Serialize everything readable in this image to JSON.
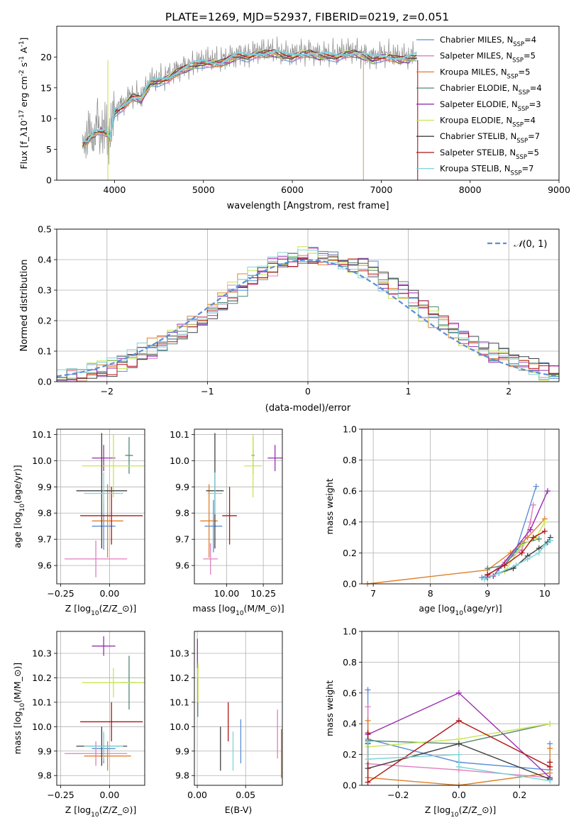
{
  "figure": {
    "title": "PLATE=1269, MJD=52937, FIBERID=0219, z=0.051"
  },
  "series_models": [
    {
      "name": "Chabrier MILES, N$_{SSP}$=4",
      "label_html": "Chabrier MILES, N<sub>SSP</sub>=4",
      "color": "#5b8fd9"
    },
    {
      "name": "Salpeter MILES, N$_{SSP}$=5",
      "label_html": "Salpeter MILES, N<sub>SSP</sub>=5",
      "color": "#e07fbf"
    },
    {
      "name": "Kroupa MILES, N$_{SSP}$=5",
      "label_html": "Kroupa MILES, N<sub>SSP</sub>=5",
      "color": "#e0802a"
    },
    {
      "name": "Chabrier ELODIE, N$_{SSP}$=4",
      "label_html": "Chabrier ELODIE, N<sub>SSP</sub>=4",
      "color": "#4f8a6f"
    },
    {
      "name": "Salpeter ELODIE, N$_{SSP}$=3",
      "label_html": "Salpeter ELODIE, N<sub>SSP</sub>=3",
      "color": "#9a2fb0"
    },
    {
      "name": "Kroupa ELODIE, N$_{SSP}$=4",
      "label_html": "Kroupa ELODIE, N<sub>SSP</sub>=4",
      "color": "#c8e650"
    },
    {
      "name": "Chabrier STELIB, N$_{SSP}$=7",
      "label_html": "Chabrier STELIB, N<sub>SSP</sub>=7",
      "color": "#404040"
    },
    {
      "name": "Salpeter STELIB, N$_{SSP}$=5",
      "label_html": "Salpeter STELIB, N<sub>SSP</sub>=5",
      "color": "#b01515"
    },
    {
      "name": "Kroupa STELIB, N$_{SSP}$=7",
      "label_html": "Kroupa STELIB, N<sub>SSP</sub>=7",
      "color": "#7dd3d8"
    }
  ],
  "chart_data": [
    {
      "id": "spectrum",
      "type": "line",
      "xlabel": "wavelength [Angstrom, rest frame]",
      "ylabel": "Flux [f$_\\lambda$10$^{-17}$ erg cm$^{-2}$ s$^{-1}$ A$^{-1}$]",
      "xlim": [
        3350,
        9000
      ],
      "ylim": [
        0,
        25
      ],
      "xticks": [
        4000,
        5000,
        6000,
        7000,
        8000,
        9000
      ],
      "yticks": [
        0,
        5,
        10,
        15,
        20
      ],
      "grid": false,
      "legend": "right",
      "data_x": [
        3640,
        3700,
        3780,
        3850,
        3900,
        3950,
        4000,
        4100,
        4200,
        4300,
        4400,
        4500,
        4600,
        4700,
        4800,
        4900,
        5000,
        5100,
        5200,
        5300,
        5400,
        5500,
        5600,
        5700,
        5800,
        5900,
        6000,
        6100,
        6200,
        6300,
        6400,
        6500,
        6600,
        6700,
        6800,
        6900,
        7000,
        7100,
        7200,
        7300,
        7400
      ],
      "data_y": [
        6.0,
        7.5,
        9.0,
        8.5,
        8.0,
        7.5,
        11.5,
        12.5,
        14.0,
        13.5,
        16.0,
        16.5,
        17.0,
        18.0,
        18.5,
        19.0,
        19.5,
        19.5,
        19.5,
        20.0,
        20.5,
        20.5,
        21.0,
        21.0,
        21.0,
        20.5,
        20.5,
        21.0,
        21.0,
        20.5,
        20.5,
        20.5,
        21.0,
        21.0,
        20.5,
        20.0,
        20.5,
        20.5,
        20.0,
        20.0,
        20.5
      ],
      "model_x": [
        3640,
        3700,
        3780,
        3850,
        3900,
        3950,
        4000,
        4100,
        4200,
        4300,
        4400,
        4500,
        4600,
        4700,
        4800,
        4900,
        5000,
        5100,
        5200,
        5300,
        5400,
        5500,
        5600,
        5700,
        5800,
        5900,
        6000,
        6100,
        6200,
        6300,
        6400,
        6500,
        6600,
        6700,
        6800,
        6900,
        7000,
        7100,
        7200,
        7300,
        7400
      ],
      "model_y": [
        5.5,
        6.5,
        7.5,
        8.0,
        7.5,
        7.0,
        11.0,
        12.0,
        13.5,
        13.0,
        15.5,
        16.0,
        16.5,
        17.5,
        18.0,
        18.5,
        19.0,
        19.0,
        19.0,
        19.5,
        20.0,
        20.0,
        20.5,
        20.5,
        20.5,
        20.0,
        20.0,
        20.5,
        20.5,
        20.0,
        20.0,
        20.0,
        20.5,
        20.5,
        20.0,
        19.5,
        20.0,
        20.0,
        19.5,
        19.5,
        20.0
      ]
    },
    {
      "id": "residuals",
      "type": "line",
      "xlabel": "(data-model)/error",
      "ylabel": "Normed distribution",
      "xlim": [
        -2.5,
        2.5
      ],
      "ylim": [
        0,
        0.5
      ],
      "xticks": [
        -2,
        -1,
        0,
        1,
        2
      ],
      "yticks": [
        0.0,
        0.1,
        0.2,
        0.3,
        0.4,
        0.5
      ],
      "grid": true,
      "legend": "top-right",
      "gauss_label": "$\\mathcal{N}(0,1)$",
      "gauss_color": "#5b8fd9",
      "bin_start": -2.5,
      "bin_width": 0.1
    },
    {
      "id": "age-vs-Z",
      "type": "scatter",
      "xlabel": "Z [log$_{10}$(Z/Z$_\\odot$)]",
      "ylabel": "age  [log$_{10}$(age/yr)]",
      "xlim": [
        -0.27,
        0.18
      ],
      "ylim": [
        9.53,
        10.12
      ],
      "xticks": [
        -0.25,
        0.0
      ],
      "yticks": [
        9.6,
        9.7,
        9.8,
        9.9,
        10.0,
        10.1
      ],
      "grid": true,
      "points": [
        {
          "x": -0.03,
          "y": 9.75,
          "xerr": 0.06,
          "yerr": 0.09
        },
        {
          "x": -0.07,
          "y": 9.625,
          "xerr": 0.16,
          "yerr": 0.07
        },
        {
          "x": -0.01,
          "y": 9.77,
          "xerr": 0.08,
          "yerr": 0.14
        },
        {
          "x": 0.1,
          "y": 10.02,
          "xerr": 0.02,
          "yerr": 0.07
        },
        {
          "x": -0.03,
          "y": 10.01,
          "xerr": 0.06,
          "yerr": 0.05
        },
        {
          "x": 0.02,
          "y": 9.98,
          "xerr": 0.16,
          "yerr": 0.12
        },
        {
          "x": -0.04,
          "y": 9.885,
          "xerr": 0.13,
          "yerr": 0.22
        },
        {
          "x": 0.01,
          "y": 9.79,
          "xerr": 0.16,
          "yerr": 0.11
        },
        {
          "x": -0.03,
          "y": 9.875,
          "xerr": 0.1,
          "yerr": 0.08
        }
      ]
    },
    {
      "id": "age-vs-mass",
      "type": "scatter",
      "xlabel": "mass [log$_{10}$(M/M$_\\odot$)]",
      "ylabel": "",
      "xlim": [
        9.78,
        10.38
      ],
      "ylim": [
        9.53,
        10.12
      ],
      "xticks": [
        10.0,
        10.25
      ],
      "yticks": [
        9.6,
        9.7,
        9.8,
        9.9,
        10.0,
        10.1
      ],
      "grid": true,
      "points": [
        {
          "x": 9.91,
          "y": 9.75,
          "xerr": 0.06,
          "yerr": 0.1
        },
        {
          "x": 9.89,
          "y": 9.625,
          "xerr": 0.05,
          "yerr": 0.06
        },
        {
          "x": 9.88,
          "y": 9.77,
          "xerr": 0.06,
          "yerr": 0.14
        },
        {
          "x": 10.18,
          "y": 10.02,
          "xerr": 0.01,
          "yerr": 0.07
        },
        {
          "x": 10.33,
          "y": 10.01,
          "xerr": 0.05,
          "yerr": 0.05
        },
        {
          "x": 10.18,
          "y": 9.98,
          "xerr": 0.06,
          "yerr": 0.12
        },
        {
          "x": 9.92,
          "y": 9.885,
          "xerr": 0.06,
          "yerr": 0.22
        },
        {
          "x": 10.02,
          "y": 9.79,
          "xerr": 0.05,
          "yerr": 0.11
        },
        {
          "x": 9.92,
          "y": 9.875,
          "xerr": 0.05,
          "yerr": 0.08
        }
      ]
    },
    {
      "id": "weight-vs-age",
      "type": "line",
      "xlabel": "age  [log$_{10}$(age/yr)]",
      "ylabel": "mass weight",
      "xlim": [
        6.8,
        10.25
      ],
      "ylim": [
        0,
        1
      ],
      "xticks": [
        7,
        8,
        9,
        10
      ],
      "yticks": [
        0.0,
        0.2,
        0.4,
        0.6,
        0.8,
        1.0
      ],
      "grid": true,
      "series": [
        {
          "x": [
            8.9,
            9.2,
            9.5,
            9.85
          ],
          "y": [
            0.04,
            0.1,
            0.22,
            0.63
          ]
        },
        {
          "x": [
            9.0,
            9.3,
            9.6,
            9.75,
            9.8
          ],
          "y": [
            0.05,
            0.14,
            0.22,
            0.4,
            0.51
          ]
        },
        {
          "x": [
            6.9,
            9.0,
            9.4,
            9.7,
            10.0
          ],
          "y": [
            0.0,
            0.09,
            0.2,
            0.3,
            0.42
          ]
        },
        {
          "x": [
            9.0,
            9.3,
            9.6,
            9.9
          ],
          "y": [
            0.1,
            0.12,
            0.26,
            0.29
          ]
        },
        {
          "x": [
            9.1,
            9.75,
            10.05
          ],
          "y": [
            0.05,
            0.35,
            0.6
          ]
        },
        {
          "x": [
            9.3,
            9.6,
            9.85,
            10.0
          ],
          "y": [
            0.08,
            0.25,
            0.3,
            0.4
          ]
        },
        {
          "x": [
            9.0,
            9.2,
            9.45,
            9.7,
            9.9,
            10.05,
            10.1
          ],
          "y": [
            0.04,
            0.07,
            0.1,
            0.18,
            0.23,
            0.27,
            0.3
          ]
        },
        {
          "x": [
            9.0,
            9.3,
            9.6,
            9.8,
            10.0
          ],
          "y": [
            0.06,
            0.12,
            0.2,
            0.3,
            0.34
          ]
        },
        {
          "x": [
            8.95,
            9.2,
            9.5,
            9.7,
            9.9,
            10.0,
            10.1
          ],
          "y": [
            0.03,
            0.07,
            0.12,
            0.16,
            0.2,
            0.25,
            0.28
          ]
        }
      ]
    },
    {
      "id": "mass-vs-Z",
      "type": "scatter",
      "xlabel": "Z [log$_{10}$(Z/Z$_\\odot$)]",
      "ylabel": "mass [log$_{10}$(M/M$_\\odot$)]",
      "xlim": [
        -0.27,
        0.18
      ],
      "ylim": [
        9.76,
        10.39
      ],
      "xticks": [
        -0.25,
        0.0
      ],
      "yticks": [
        9.8,
        9.9,
        10.0,
        10.1,
        10.2,
        10.3
      ],
      "grid": true,
      "points": [
        {
          "x": -0.03,
          "y": 9.91,
          "xerr": 0.06,
          "yerr": 0.06
        },
        {
          "x": -0.07,
          "y": 9.89,
          "xerr": 0.16,
          "yerr": 0.05
        },
        {
          "x": -0.01,
          "y": 9.88,
          "xerr": 0.12,
          "yerr": 0.06
        },
        {
          "x": 0.1,
          "y": 10.18,
          "xerr": 0.04,
          "yerr": 0.11
        },
        {
          "x": -0.03,
          "y": 10.33,
          "xerr": 0.06,
          "yerr": 0.04
        },
        {
          "x": 0.02,
          "y": 10.18,
          "xerr": 0.16,
          "yerr": 0.06
        },
        {
          "x": -0.04,
          "y": 9.92,
          "xerr": 0.13,
          "yerr": 0.08
        },
        {
          "x": 0.01,
          "y": 10.02,
          "xerr": 0.16,
          "yerr": 0.08
        },
        {
          "x": -0.03,
          "y": 9.92,
          "xerr": 0.1,
          "yerr": 0.06
        }
      ]
    },
    {
      "id": "mass-vs-EBV",
      "type": "scatter",
      "xlabel": "E(B-V)",
      "ylabel": "",
      "xlim": [
        -0.003,
        0.088
      ],
      "ylim": [
        9.76,
        10.39
      ],
      "xticks": [
        0.0,
        0.05
      ],
      "yticks": [
        9.8,
        9.9,
        10.0,
        10.1,
        10.2,
        10.3
      ],
      "grid": true,
      "points": [
        {
          "x": 0.045,
          "y": 9.94,
          "xerr": 0,
          "yerr": 0.09
        },
        {
          "x": 0.083,
          "y": 9.97,
          "xerr": 0,
          "yerr": 0.1
        },
        {
          "x": 0.087,
          "y": 9.89,
          "xerr": 0,
          "yerr": 0.1
        },
        {
          "x": 0.0005,
          "y": 10.12,
          "xerr": 0,
          "yerr": 0.08
        },
        {
          "x": 0.0002,
          "y": 10.3,
          "xerr": 0,
          "yerr": 0.06
        },
        {
          "x": 0.0008,
          "y": 10.18,
          "xerr": 0,
          "yerr": 0.08
        },
        {
          "x": 0.024,
          "y": 9.91,
          "xerr": 0,
          "yerr": 0.09
        },
        {
          "x": 0.032,
          "y": 10.02,
          "xerr": 0,
          "yerr": 0.08
        },
        {
          "x": 0.037,
          "y": 9.9,
          "xerr": 0,
          "yerr": 0.08
        }
      ]
    },
    {
      "id": "weight-vs-Z",
      "type": "line",
      "xlabel": "Z [log$_{10}$(Z/Z$_\\odot$)]",
      "ylabel": "mass weight",
      "xlim": [
        -0.32,
        0.33
      ],
      "ylim": [
        0,
        1
      ],
      "xticks": [
        -0.2,
        0.0,
        0.2
      ],
      "yticks": [
        0.0,
        0.2,
        0.4,
        0.6,
        0.8,
        1.0
      ],
      "grid": true,
      "series": [
        {
          "x": [
            -0.3,
            -0.3,
            0.0,
            0.3,
            0.3
          ],
          "y": [
            0.62,
            0.3,
            0.15,
            0.1,
            0.27
          ]
        },
        {
          "x": [
            -0.3,
            -0.3,
            0.0,
            0.3
          ],
          "y": [
            0.51,
            0.14,
            0.1,
            0.05
          ]
        },
        {
          "x": [
            -0.3,
            -0.3,
            0.0,
            0.3,
            0.3
          ],
          "y": [
            0.42,
            0.05,
            0.0,
            0.08,
            0.24
          ]
        },
        {
          "x": [
            -0.3,
            0.0,
            0.3
          ],
          "y": [
            0.29,
            0.27,
            0.4
          ]
        },
        {
          "x": [
            -0.3,
            0.0,
            0.3
          ],
          "y": [
            0.33,
            0.6,
            0.05
          ]
        },
        {
          "x": [
            -0.3,
            0.0,
            0.3
          ],
          "y": [
            0.25,
            0.3,
            0.4
          ]
        },
        {
          "x": [
            -0.3,
            -0.3,
            0.0,
            0.3
          ],
          "y": [
            0.27,
            0.11,
            0.27,
            0.04
          ]
        },
        {
          "x": [
            -0.3,
            -0.3,
            0.0,
            0.3,
            0.3
          ],
          "y": [
            0.34,
            0.02,
            0.42,
            0.12,
            0.15
          ]
        },
        {
          "x": [
            -0.3,
            -0.3,
            0.0,
            0.0,
            0.3
          ],
          "y": [
            0.28,
            0.17,
            0.2,
            0.12,
            0.03
          ]
        }
      ]
    }
  ]
}
